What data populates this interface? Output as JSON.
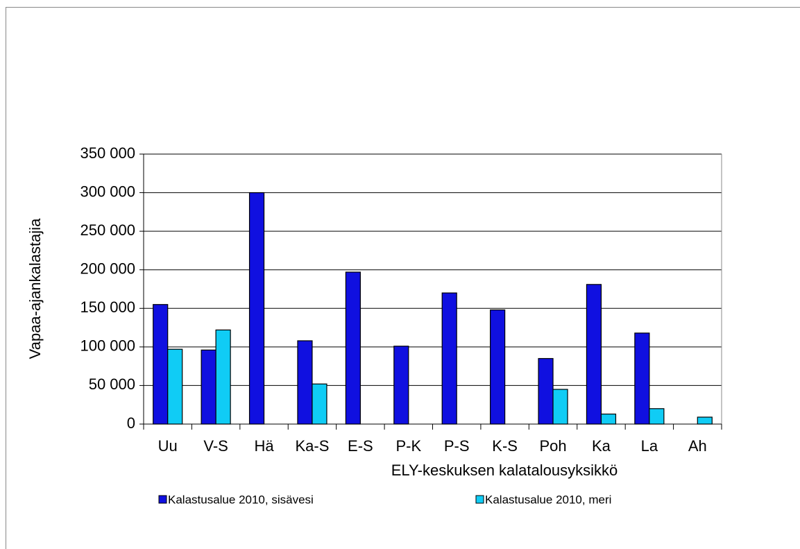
{
  "chart_data": {
    "type": "bar",
    "x_label": "ELY-keskuksen kalatalousyksikkö",
    "y_label": "Vapaa-ajankalastajia",
    "categories": [
      "Uu",
      "V-S",
      "Hä",
      "Ka-S",
      "E-S",
      "P-K",
      "P-S",
      "K-S",
      "Poh",
      "Ka",
      "La",
      "Ah"
    ],
    "series": [
      {
        "name": "Kalastusalue 2010, sisävesi",
        "color": "#1010e0",
        "values": [
          155000,
          96000,
          300000,
          108000,
          197000,
          101000,
          170000,
          148000,
          85000,
          181000,
          118000,
          null
        ]
      },
      {
        "name": "Kalastusalue 2010, meri",
        "color": "#10ccf5",
        "values": [
          97000,
          122000,
          null,
          52000,
          null,
          null,
          null,
          null,
          45000,
          13000,
          20000,
          9000
        ]
      }
    ],
    "ylim": [
      0,
      350000
    ],
    "yticks": [
      0,
      {
        "value": 50000,
        "label": "50 000"
      },
      {
        "value": 100000,
        "label": "100 000"
      },
      {
        "value": 150000,
        "label": "150 000"
      },
      {
        "value": 200000,
        "label": "200 000"
      },
      {
        "value": 250000,
        "label": "250 000"
      },
      {
        "value": 300000,
        "label": "300 000"
      },
      {
        "value": 350000,
        "label": "350 000"
      }
    ],
    "grid": true,
    "legend": "bottom"
  }
}
